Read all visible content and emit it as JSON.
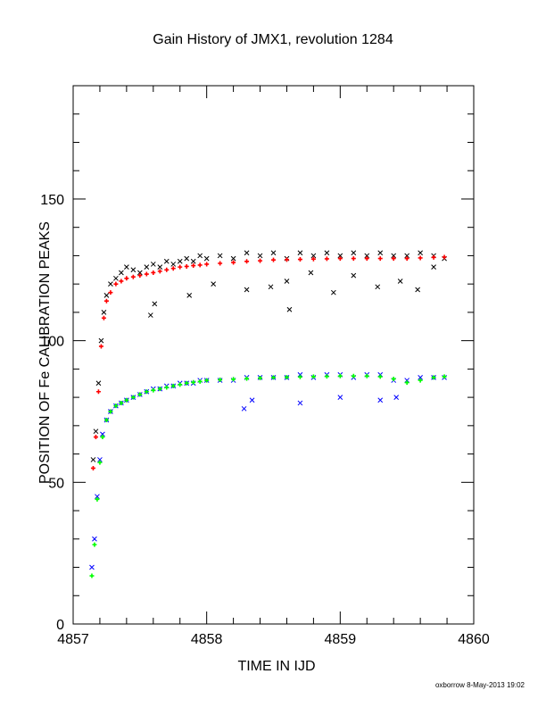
{
  "chart_data": {
    "type": "scatter",
    "title": "Gain History of JMX1, revolution 1284",
    "xlabel": "TIME IN IJD",
    "ylabel": "POSITION OF Fe CALIBRATION PEAKS",
    "xlim": [
      4857,
      4860
    ],
    "ylim": [
      0,
      190
    ],
    "xticks": [
      "4857",
      "4858",
      "4859",
      "4860"
    ],
    "yticks": [
      "0",
      "50",
      "100",
      "150"
    ],
    "grid": false,
    "legend": "none",
    "series": [
      {
        "marker": "x",
        "color": "#000000",
        "x": [
          4857.15,
          4857.17,
          4857.19,
          4857.21,
          4857.23,
          4857.25,
          4857.28,
          4857.32,
          4857.36,
          4857.4,
          4857.45,
          4857.5,
          4857.55,
          4857.6,
          4857.65,
          4857.7,
          4857.75,
          4857.8,
          4857.85,
          4857.9,
          4857.95,
          4858.0,
          4858.1,
          4858.2,
          4858.3,
          4858.4,
          4858.5,
          4858.6,
          4858.7,
          4858.8,
          4858.9,
          4859.0,
          4859.1,
          4859.2,
          4859.3,
          4859.4,
          4859.5,
          4859.6,
          4859.7,
          4859.78,
          4857.58,
          4857.61,
          4857.87,
          4858.05,
          4858.3,
          4858.48,
          4858.6,
          4858.62,
          4858.78,
          4858.95,
          4859.1,
          4859.28,
          4859.45,
          4859.58,
          4859.7
        ],
        "y": [
          58,
          68,
          85,
          100,
          110,
          116,
          120,
          122,
          124,
          126,
          125,
          124,
          126,
          127,
          126,
          128,
          127,
          128,
          129,
          128,
          130,
          129,
          130,
          129,
          131,
          130,
          131,
          129,
          131,
          130,
          131,
          130,
          131,
          130,
          131,
          130,
          130,
          131,
          130,
          129,
          109,
          113,
          116,
          120,
          118,
          119,
          121,
          111,
          124,
          117,
          123,
          119,
          121,
          118,
          126
        ]
      },
      {
        "marker": "+",
        "color": "#ff0000",
        "x": [
          4857.15,
          4857.17,
          4857.19,
          4857.21,
          4857.23,
          4857.25,
          4857.28,
          4857.32,
          4857.36,
          4857.4,
          4857.45,
          4857.5,
          4857.55,
          4857.6,
          4857.65,
          4857.7,
          4857.75,
          4857.8,
          4857.85,
          4857.9,
          4857.95,
          4858.0,
          4858.1,
          4858.2,
          4858.3,
          4858.4,
          4858.5,
          4858.6,
          4858.7,
          4858.8,
          4858.9,
          4859.0,
          4859.1,
          4859.2,
          4859.3,
          4859.4,
          4859.5,
          4859.6,
          4859.7,
          4859.78
        ],
        "y": [
          55,
          66,
          82,
          98,
          108,
          114,
          117,
          120,
          121,
          122,
          122.5,
          123,
          123.5,
          124,
          124.5,
          125,
          125.5,
          126,
          126.2,
          126.5,
          126.7,
          127,
          127.3,
          127.6,
          128,
          128.2,
          128.5,
          128.6,
          128.7,
          128.8,
          128.9,
          129,
          129,
          129,
          129,
          129,
          129,
          129.2,
          129.4,
          129.5
        ]
      },
      {
        "marker": "x",
        "color": "#0000ff",
        "x": [
          4857.14,
          4857.16,
          4857.18,
          4857.2,
          4857.22,
          4857.25,
          4857.28,
          4857.32,
          4857.36,
          4857.4,
          4857.45,
          4857.5,
          4857.55,
          4857.6,
          4857.65,
          4857.7,
          4857.75,
          4857.8,
          4857.85,
          4857.9,
          4857.95,
          4858.0,
          4858.1,
          4858.2,
          4858.3,
          4858.4,
          4858.5,
          4858.6,
          4858.7,
          4858.8,
          4858.9,
          4859.0,
          4859.1,
          4859.2,
          4859.3,
          4859.4,
          4859.5,
          4859.6,
          4859.7,
          4859.78,
          4858.28,
          4858.34,
          4858.7,
          4859.0,
          4859.3,
          4859.42
        ],
        "y": [
          20,
          30,
          45,
          58,
          67,
          72,
          75,
          77,
          78,
          79,
          80,
          81,
          82,
          83,
          83,
          84,
          84,
          85,
          85,
          85,
          86,
          86,
          86,
          86,
          87,
          87,
          87,
          87,
          88,
          87,
          88,
          88,
          87,
          88,
          88,
          86,
          86,
          87,
          87,
          87,
          76,
          79,
          78,
          80,
          79,
          80
        ]
      },
      {
        "marker": "+",
        "color": "#00ff00",
        "x": [
          4857.14,
          4857.16,
          4857.18,
          4857.2,
          4857.22,
          4857.25,
          4857.28,
          4857.32,
          4857.36,
          4857.4,
          4857.45,
          4857.5,
          4857.55,
          4857.6,
          4857.65,
          4857.7,
          4857.75,
          4857.8,
          4857.85,
          4857.9,
          4857.95,
          4858.0,
          4858.1,
          4858.2,
          4858.3,
          4858.4,
          4858.5,
          4858.6,
          4858.7,
          4858.8,
          4858.9,
          4859.0,
          4859.1,
          4859.2,
          4859.3,
          4859.4,
          4859.5,
          4859.6,
          4859.7,
          4859.78
        ],
        "y": [
          17,
          28,
          44,
          57,
          66,
          72,
          75,
          77,
          78,
          79,
          80,
          81,
          82,
          82.5,
          83,
          83.5,
          84,
          84.5,
          85,
          85.3,
          85.6,
          86,
          86.2,
          86.4,
          86.6,
          86.8,
          87,
          87.1,
          87.2,
          87.3,
          87.4,
          87.5,
          87.5,
          87.5,
          87.3,
          86.5,
          85.2,
          86,
          87,
          87.3
        ]
      }
    ]
  },
  "footer": {
    "credit": "oxborrow 8-May-2013 19:02"
  }
}
